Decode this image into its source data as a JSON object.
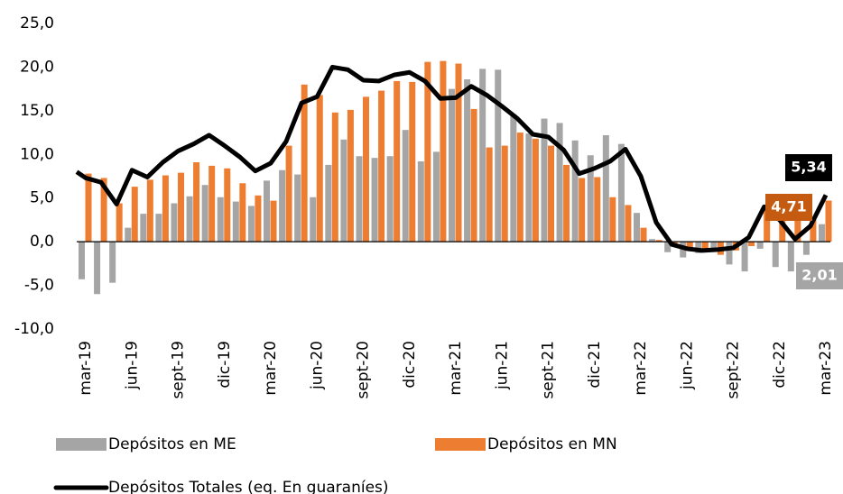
{
  "chart_data": {
    "type": "bar-line",
    "categories": [
      "mar-19",
      null,
      null,
      "jun-19",
      null,
      null,
      "sept-19",
      null,
      null,
      "dic-19",
      null,
      null,
      "mar-20",
      null,
      null,
      "jun-20",
      null,
      null,
      "sept-20",
      null,
      null,
      "dic-20",
      null,
      null,
      "mar-21",
      null,
      null,
      "jun-21",
      null,
      null,
      "sept-21",
      null,
      null,
      "dic-21",
      null,
      null,
      "mar-22",
      null,
      null,
      "jun-22",
      null,
      null,
      "sept-22",
      null,
      null,
      "dic-22",
      null,
      null,
      "mar-23"
    ],
    "series": [
      {
        "name": "Depósitos en ME",
        "color": "#a5a5a5",
        "kind": "bar",
        "values": [
          -4.3,
          -6.0,
          -4.7,
          1.6,
          3.2,
          3.2,
          4.4,
          5.2,
          6.5,
          5.1,
          4.6,
          4.1,
          7.0,
          8.2,
          7.7,
          5.1,
          8.8,
          11.7,
          9.8,
          9.6,
          9.8,
          12.8,
          9.2,
          10.3,
          17.5,
          18.6,
          19.8,
          19.7,
          14.6,
          12.4,
          14.1,
          13.6,
          11.6,
          9.9,
          12.2,
          11.2,
          3.3,
          0.3,
          -1.2,
          -1.8,
          -1.3,
          -1.0,
          -2.6,
          -3.4,
          -0.8,
          -2.9,
          -3.4,
          -1.5,
          2.01
        ],
        "value_labels": [
          null,
          null,
          null,
          null,
          null,
          null,
          null,
          null,
          null,
          null,
          null,
          null,
          null,
          null,
          null,
          null,
          null,
          null,
          null,
          null,
          null,
          null,
          null,
          null,
          null,
          null,
          null,
          null,
          null,
          null,
          null,
          null,
          null,
          null,
          null,
          null,
          null,
          null,
          null,
          null,
          null,
          null,
          null,
          null,
          null,
          null,
          null,
          null,
          "2,01"
        ],
        "label_color": "#a5a5a5"
      },
      {
        "name": "Depósitos en MN",
        "color": "#ed7d31",
        "kind": "bar",
        "values": [
          7.8,
          7.3,
          4.4,
          6.3,
          7.1,
          7.6,
          7.9,
          9.1,
          8.7,
          8.4,
          6.7,
          5.3,
          4.7,
          11.0,
          18.0,
          16.8,
          14.8,
          15.1,
          16.6,
          17.3,
          18.4,
          18.3,
          20.6,
          20.7,
          20.4,
          15.2,
          10.8,
          11.0,
          12.5,
          11.8,
          11.0,
          8.8,
          7.3,
          7.4,
          5.1,
          4.2,
          1.6,
          0.2,
          -0.4,
          -0.7,
          -0.8,
          -1.5,
          -1.0,
          -0.5,
          4.0,
          4.5,
          3.0,
          2.5,
          4.71
        ],
        "value_labels": [
          null,
          null,
          null,
          null,
          null,
          null,
          null,
          null,
          null,
          null,
          null,
          null,
          null,
          null,
          null,
          null,
          null,
          null,
          null,
          null,
          null,
          null,
          null,
          null,
          null,
          null,
          null,
          null,
          null,
          null,
          null,
          null,
          null,
          null,
          null,
          null,
          null,
          null,
          null,
          null,
          null,
          null,
          null,
          null,
          null,
          null,
          null,
          null,
          "4,71"
        ],
        "label_color": "#c55a11"
      },
      {
        "name": "Depósitos Totales (eq. En guaraníes)",
        "color": "#000000",
        "kind": "line",
        "values": [
          7.3,
          6.8,
          4.3,
          8.2,
          7.4,
          9.1,
          10.4,
          11.2,
          12.2,
          11.0,
          9.7,
          8.1,
          9.0,
          11.5,
          15.9,
          16.6,
          20.0,
          19.7,
          18.5,
          18.4,
          19.1,
          19.4,
          18.4,
          16.4,
          16.5,
          17.8,
          16.8,
          15.5,
          14.1,
          12.3,
          12.0,
          10.5,
          7.8,
          8.4,
          9.2,
          10.6,
          7.5,
          2.2,
          -0.3,
          -0.8,
          -1.0,
          -0.9,
          -0.7,
          0.5,
          4.0,
          2.5,
          0.3,
          1.8,
          5.34
        ],
        "value_labels": [
          null,
          null,
          null,
          null,
          null,
          null,
          null,
          null,
          null,
          null,
          null,
          null,
          null,
          null,
          null,
          null,
          null,
          null,
          null,
          null,
          null,
          null,
          null,
          null,
          null,
          null,
          null,
          null,
          null,
          null,
          null,
          null,
          null,
          null,
          null,
          null,
          null,
          null,
          null,
          null,
          null,
          null,
          null,
          null,
          null,
          null,
          null,
          null,
          "5,34"
        ],
        "label_color": "#000000"
      }
    ],
    "ylim": [
      -10,
      25
    ],
    "yticks": [
      {
        "value": -10,
        "label": "-10,0"
      },
      {
        "value": -5,
        "label": "-5,0"
      },
      {
        "value": 0,
        "label": "0,0"
      },
      {
        "value": 5,
        "label": "5,0"
      },
      {
        "value": 10,
        "label": "10,0"
      },
      {
        "value": 15,
        "label": "15,0"
      },
      {
        "value": 20,
        "label": "20,0"
      },
      {
        "value": 25,
        "label": "25,0"
      }
    ],
    "grid": false,
    "legend": "bottom"
  }
}
